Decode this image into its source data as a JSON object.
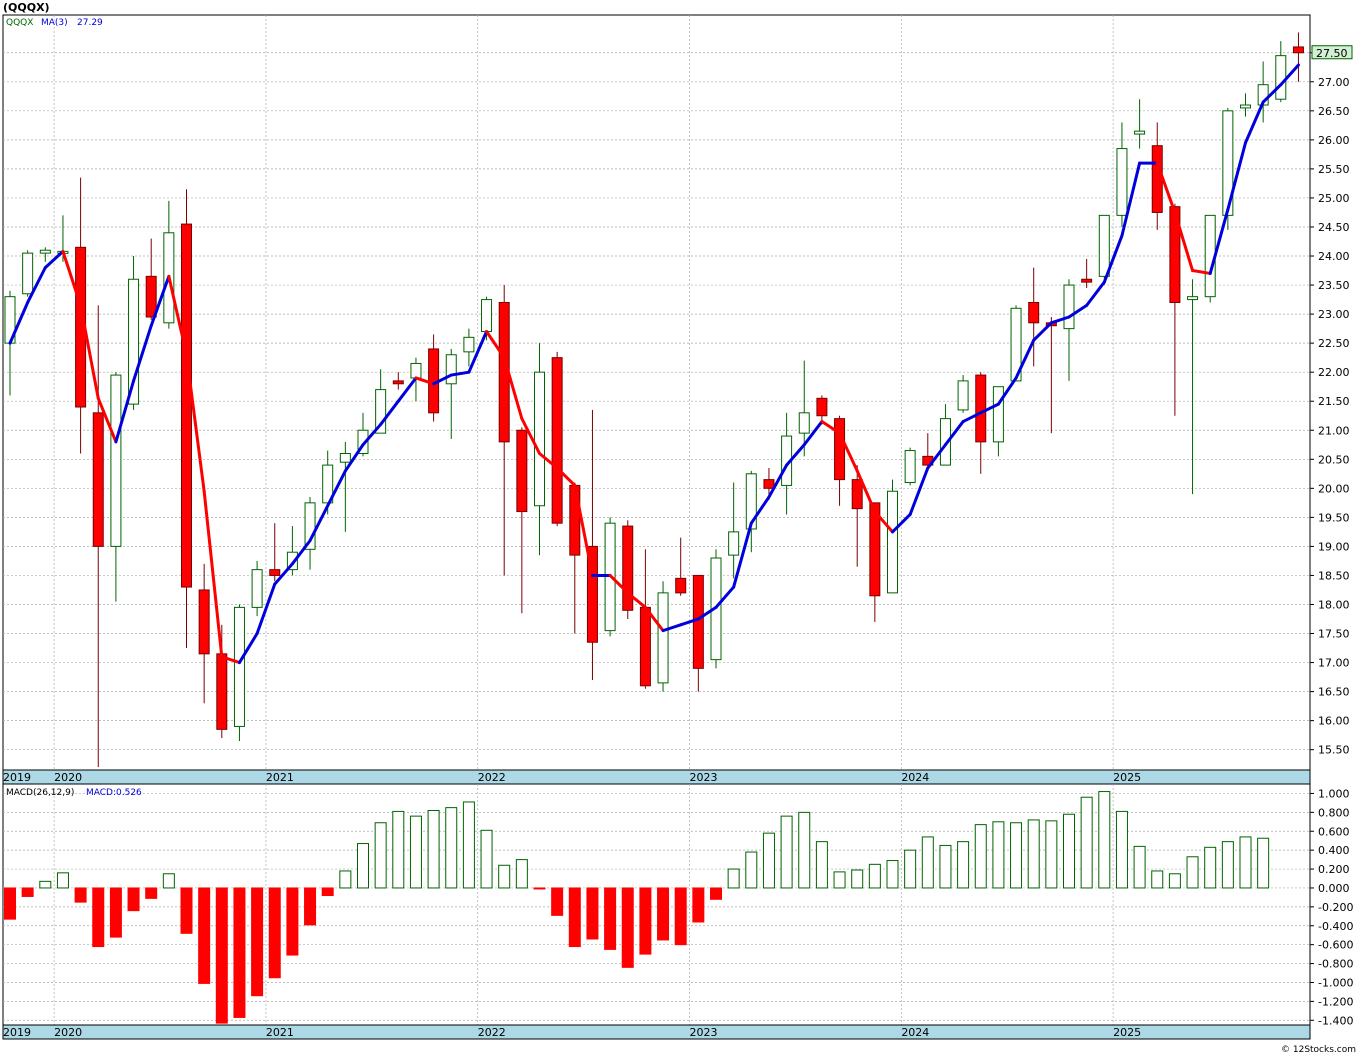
{
  "header": {
    "symbol_title": "(QQQX)",
    "legend_symbol": "QQQX",
    "legend_ma_label": "MA(3)",
    "legend_ma_value": "27.29",
    "macd_label": "MACD(26,12,9)",
    "macd_value_label": "MACD:0.526",
    "last_price_badge": "27.50",
    "footer": "© 12Stocks.com"
  },
  "colors": {
    "up": "#006400",
    "down": "#ff0000",
    "ma_up": "#0000dd",
    "ma_down": "#ff0000",
    "grid": "#aaaaaa",
    "axis_band": "#add8e6",
    "badge": "#d4f0d4"
  },
  "chart_data": [
    {
      "type": "candlestick",
      "interval": "monthly",
      "series_name": "QQQX",
      "ylim": [
        15.15,
        28.15
      ],
      "y_ticks": [
        15.5,
        16.0,
        16.5,
        17.0,
        17.5,
        18.0,
        18.5,
        19.0,
        19.5,
        20.0,
        20.5,
        21.0,
        21.5,
        22.0,
        22.5,
        23.0,
        23.5,
        24.0,
        24.5,
        25.0,
        25.5,
        26.0,
        26.5,
        27.0,
        27.5
      ],
      "y_tick_labels": [
        "15.50",
        "16.00",
        "16.50",
        "17.00",
        "17.50",
        "18.00",
        "18.50",
        "19.00",
        "19.50",
        "20.00",
        "20.50",
        "21.00",
        "21.50",
        "22.00",
        "22.50",
        "23.00",
        "23.50",
        "24.00",
        "24.50",
        "25.00",
        "25.50",
        "26.00",
        "26.50",
        "27.00",
        "27.50"
      ],
      "x_year_labels": [
        {
          "label": "2019",
          "index": -0.5
        },
        {
          "label": "2020",
          "index": 3
        },
        {
          "label": "2021",
          "index": 15
        },
        {
          "label": "2022",
          "index": 27
        },
        {
          "label": "2023",
          "index": 39
        },
        {
          "label": "2024",
          "index": 51
        },
        {
          "label": "2025",
          "index": 63
        }
      ],
      "candles": [
        {
          "o": 22.5,
          "h": 23.4,
          "l": 21.6,
          "c": 23.3
        },
        {
          "o": 23.35,
          "h": 24.1,
          "l": 23.3,
          "c": 24.05
        },
        {
          "o": 24.05,
          "h": 24.15,
          "l": 23.9,
          "c": 24.1
        },
        {
          "o": 24.05,
          "h": 24.7,
          "l": 23.9,
          "c": 24.08
        },
        {
          "o": 24.15,
          "h": 25.35,
          "l": 20.6,
          "c": 21.4
        },
        {
          "o": 21.3,
          "h": 23.15,
          "l": 15.2,
          "c": 19.0
        },
        {
          "o": 19.0,
          "h": 22.0,
          "l": 18.05,
          "c": 21.95
        },
        {
          "o": 21.45,
          "h": 24.0,
          "l": 21.35,
          "c": 23.6
        },
        {
          "o": 23.65,
          "h": 24.3,
          "l": 22.9,
          "c": 22.95
        },
        {
          "o": 22.85,
          "h": 24.95,
          "l": 22.75,
          "c": 24.4
        },
        {
          "o": 24.55,
          "h": 25.15,
          "l": 17.25,
          "c": 18.3
        },
        {
          "o": 18.25,
          "h": 18.7,
          "l": 16.3,
          "c": 17.15
        },
        {
          "o": 17.15,
          "h": 17.65,
          "l": 15.7,
          "c": 15.85
        },
        {
          "o": 15.9,
          "h": 18.0,
          "l": 15.65,
          "c": 17.95
        },
        {
          "o": 17.95,
          "h": 18.75,
          "l": 17.8,
          "c": 18.6
        },
        {
          "o": 18.6,
          "h": 19.4,
          "l": 18.4,
          "c": 18.5
        },
        {
          "o": 18.6,
          "h": 19.35,
          "l": 18.5,
          "c": 18.9
        },
        {
          "o": 18.95,
          "h": 19.85,
          "l": 18.6,
          "c": 19.75
        },
        {
          "o": 19.75,
          "h": 20.65,
          "l": 19.55,
          "c": 20.4
        },
        {
          "o": 20.45,
          "h": 20.8,
          "l": 19.25,
          "c": 20.6
        },
        {
          "o": 20.6,
          "h": 21.3,
          "l": 20.55,
          "c": 21.0
        },
        {
          "o": 20.95,
          "h": 22.05,
          "l": 20.95,
          "c": 21.7
        },
        {
          "o": 21.85,
          "h": 22.0,
          "l": 21.7,
          "c": 21.8
        },
        {
          "o": 21.9,
          "h": 22.25,
          "l": 21.5,
          "c": 22.15
        },
        {
          "o": 22.4,
          "h": 22.65,
          "l": 21.15,
          "c": 21.3
        },
        {
          "o": 21.8,
          "h": 22.4,
          "l": 20.85,
          "c": 22.3
        },
        {
          "o": 22.35,
          "h": 22.75,
          "l": 22.1,
          "c": 22.6
        },
        {
          "o": 22.7,
          "h": 23.3,
          "l": 22.55,
          "c": 23.25
        },
        {
          "o": 23.2,
          "h": 23.5,
          "l": 18.5,
          "c": 20.8
        },
        {
          "o": 21.0,
          "h": 21.05,
          "l": 17.85,
          "c": 19.6
        },
        {
          "o": 19.7,
          "h": 22.5,
          "l": 18.85,
          "c": 22.0
        },
        {
          "o": 22.25,
          "h": 22.35,
          "l": 19.35,
          "c": 19.4
        },
        {
          "o": 20.05,
          "h": 20.1,
          "l": 17.5,
          "c": 18.85
        },
        {
          "o": 19.0,
          "h": 21.35,
          "l": 16.7,
          "c": 17.35
        },
        {
          "o": 17.55,
          "h": 19.5,
          "l": 17.45,
          "c": 19.4
        },
        {
          "o": 19.35,
          "h": 19.45,
          "l": 17.75,
          "c": 17.9
        },
        {
          "o": 17.95,
          "h": 18.95,
          "l": 16.55,
          "c": 16.6
        },
        {
          "o": 16.65,
          "h": 18.4,
          "l": 16.5,
          "c": 18.2
        },
        {
          "o": 18.45,
          "h": 19.15,
          "l": 18.15,
          "c": 18.2
        },
        {
          "o": 18.5,
          "h": 18.5,
          "l": 16.5,
          "c": 16.9
        },
        {
          "o": 17.05,
          "h": 18.95,
          "l": 16.9,
          "c": 18.8
        },
        {
          "o": 18.85,
          "h": 20.1,
          "l": 18.45,
          "c": 19.25
        },
        {
          "o": 19.3,
          "h": 20.3,
          "l": 18.9,
          "c": 20.25
        },
        {
          "o": 20.15,
          "h": 20.35,
          "l": 19.8,
          "c": 20.0
        },
        {
          "o": 20.05,
          "h": 21.3,
          "l": 19.55,
          "c": 20.9
        },
        {
          "o": 20.95,
          "h": 22.2,
          "l": 20.55,
          "c": 21.3
        },
        {
          "o": 21.55,
          "h": 21.6,
          "l": 21.1,
          "c": 21.25
        },
        {
          "o": 21.2,
          "h": 21.25,
          "l": 19.7,
          "c": 20.15
        },
        {
          "o": 20.15,
          "h": 20.4,
          "l": 18.65,
          "c": 19.65
        },
        {
          "o": 19.75,
          "h": 19.75,
          "l": 17.7,
          "c": 18.15
        },
        {
          "o": 18.2,
          "h": 20.15,
          "l": 18.25,
          "c": 19.95
        },
        {
          "o": 20.1,
          "h": 20.7,
          "l": 20.05,
          "c": 20.65
        },
        {
          "o": 20.55,
          "h": 20.95,
          "l": 20.3,
          "c": 20.4
        },
        {
          "o": 20.4,
          "h": 21.45,
          "l": 20.4,
          "c": 21.2
        },
        {
          "o": 21.35,
          "h": 21.95,
          "l": 21.3,
          "c": 21.85
        },
        {
          "o": 21.95,
          "h": 22.0,
          "l": 20.25,
          "c": 20.8
        },
        {
          "o": 20.8,
          "h": 21.75,
          "l": 20.55,
          "c": 21.75
        },
        {
          "o": 21.85,
          "h": 23.15,
          "l": 21.85,
          "c": 23.1
        },
        {
          "o": 23.2,
          "h": 23.8,
          "l": 22.1,
          "c": 22.85
        },
        {
          "o": 22.85,
          "h": 22.95,
          "l": 20.95,
          "c": 22.8
        },
        {
          "o": 22.75,
          "h": 23.6,
          "l": 21.85,
          "c": 23.5
        },
        {
          "o": 23.6,
          "h": 23.95,
          "l": 23.45,
          "c": 23.55
        },
        {
          "o": 23.65,
          "h": 24.7,
          "l": 23.5,
          "c": 24.7
        },
        {
          "o": 24.7,
          "h": 26.3,
          "l": 24.5,
          "c": 25.85
        },
        {
          "o": 26.1,
          "h": 26.7,
          "l": 25.85,
          "c": 26.15
        },
        {
          "o": 25.9,
          "h": 26.3,
          "l": 24.45,
          "c": 24.75
        },
        {
          "o": 24.85,
          "h": 24.9,
          "l": 21.25,
          "c": 23.2
        },
        {
          "o": 23.25,
          "h": 23.6,
          "l": 19.9,
          "c": 23.3
        },
        {
          "o": 23.3,
          "h": 24.7,
          "l": 23.2,
          "c": 24.7
        },
        {
          "o": 24.7,
          "h": 26.55,
          "l": 24.45,
          "c": 26.5
        },
        {
          "o": 26.55,
          "h": 26.8,
          "l": 26.4,
          "c": 26.6
        },
        {
          "o": 26.6,
          "h": 27.35,
          "l": 26.3,
          "c": 26.95
        },
        {
          "o": 26.7,
          "h": 27.7,
          "l": 26.65,
          "c": 27.45
        },
        {
          "o": 27.6,
          "h": 27.85,
          "l": 27.0,
          "c": 27.5
        }
      ],
      "ma3": [
        22.5,
        23.2,
        23.8,
        24.08,
        23.15,
        21.55,
        20.8,
        21.85,
        22.8,
        23.65,
        22.3,
        19.95,
        17.1,
        17.0,
        17.5,
        18.35,
        18.7,
        19.1,
        19.7,
        20.3,
        20.75,
        21.1,
        21.5,
        21.9,
        21.8,
        21.95,
        22.0,
        22.7,
        22.25,
        21.2,
        20.6,
        20.35,
        20.05,
        18.5,
        18.5,
        18.2,
        17.95,
        17.55,
        17.65,
        17.75,
        17.95,
        18.3,
        19.4,
        19.85,
        20.4,
        20.75,
        21.15,
        20.95,
        20.3,
        19.6,
        19.25,
        19.55,
        20.35,
        20.75,
        21.15,
        21.3,
        21.45,
        21.9,
        22.55,
        22.85,
        22.95,
        23.15,
        23.55,
        24.35,
        25.6,
        25.6,
        24.75,
        23.75,
        23.7,
        24.8,
        25.95,
        26.65,
        26.95,
        27.29
      ]
    },
    {
      "type": "bar",
      "series_name": "MACD(26,12,9)",
      "ylim": [
        -1.45,
        1.1
      ],
      "y_ticks": [
        -1.4,
        -1.2,
        -1.0,
        -0.8,
        -0.6,
        -0.4,
        -0.2,
        0.0,
        0.2,
        0.4,
        0.6,
        0.8,
        1.0
      ],
      "y_tick_labels": [
        "-1.400",
        "-1.200",
        "-1.000",
        "-0.800",
        "-0.600",
        "-0.400",
        "-0.200",
        "0.000",
        "0.200",
        "0.400",
        "0.600",
        "0.800",
        "1.000"
      ],
      "values": [
        -0.33,
        -0.09,
        0.07,
        0.16,
        -0.15,
        -0.62,
        -0.52,
        -0.24,
        -0.11,
        0.15,
        -0.48,
        -1.01,
        -1.43,
        -1.37,
        -1.14,
        -0.95,
        -0.71,
        -0.39,
        -0.08,
        0.18,
        0.47,
        0.69,
        0.81,
        0.76,
        0.82,
        0.85,
        0.91,
        0.61,
        0.24,
        0.3,
        -0.01,
        -0.29,
        -0.62,
        -0.54,
        -0.65,
        -0.84,
        -0.7,
        -0.55,
        -0.6,
        -0.36,
        -0.12,
        0.2,
        0.38,
        0.58,
        0.76,
        0.8,
        0.49,
        0.17,
        0.19,
        0.25,
        0.29,
        0.4,
        0.54,
        0.45,
        0.49,
        0.67,
        0.7,
        0.69,
        0.72,
        0.71,
        0.78,
        0.96,
        1.02,
        0.81,
        0.44,
        0.18,
        0.15,
        0.33,
        0.43,
        0.49,
        0.54,
        0.526
      ]
    }
  ]
}
